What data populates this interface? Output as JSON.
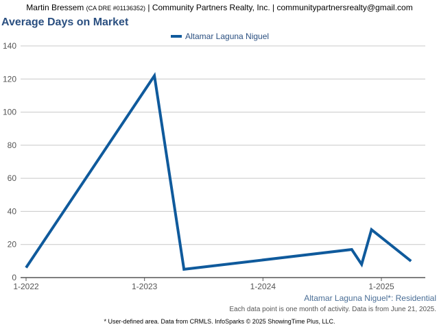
{
  "header": {
    "agent_name": "Martin Bressem",
    "license": "(CA DRE #01136352)",
    "company": "| Community Partners Realty, Inc. |",
    "email": "communitypartnersrealty@gmail.com"
  },
  "chart_data": {
    "type": "line",
    "title": "Average Days on Market",
    "xlabel": "",
    "ylabel": "",
    "ylim": [
      0,
      140
    ],
    "yticks": [
      0,
      20,
      40,
      60,
      80,
      100,
      120,
      140
    ],
    "xticks": [
      "1-2022",
      "1-2023",
      "1-2024",
      "1-2025"
    ],
    "grid": true,
    "legend_position": "top-center",
    "series": [
      {
        "name": "Altamar Laguna Niguel",
        "color": "#0f5a9c",
        "x": [
          "1-2022",
          "2-2023",
          "5-2023",
          "10-2024",
          "11-2024",
          "12-2024",
          "4-2025"
        ],
        "values": [
          6,
          122,
          5,
          17,
          8,
          29,
          10
        ]
      }
    ]
  },
  "footer": {
    "series_label": "Altamar Laguna Niguel*: Residential",
    "note": "Each data point is one month of activity. Data is from June 21, 2025.",
    "source": "* User-defined area. Data from CRMLS. InfoSparks © 2025 ShowingTime Plus, LLC."
  }
}
